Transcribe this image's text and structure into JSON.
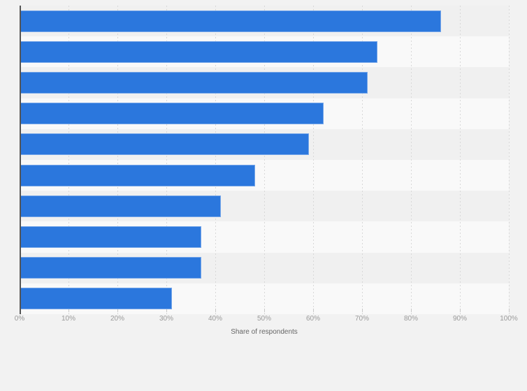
{
  "chart_data": {
    "type": "bar",
    "orientation": "horizontal",
    "title": "",
    "xlabel": "Share of respondents",
    "ylabel": "",
    "unit": "%",
    "xlim": [
      0,
      100
    ],
    "x_tick_step": 10,
    "x_tick_labels": [
      "0%",
      "10%",
      "20%",
      "30%",
      "40%",
      "50%",
      "60%",
      "70%",
      "80%",
      "90%",
      "100%"
    ],
    "values": [
      86,
      73,
      71,
      62,
      59,
      48,
      41,
      37,
      37,
      31
    ],
    "category_labels_visible": false,
    "legend": "none",
    "grid": "vertical dotted lines every 10%, alternating horizontal row bands"
  },
  "colors": {
    "background": "#f2f2f2",
    "band_odd": "#f0f0f0",
    "band_even": "#f9f9f9",
    "bar": "#2b77dd",
    "axis_line": "#555555",
    "grid_line": "#d8d8d8",
    "tick_label": "#999999",
    "axis_title": "#666666"
  }
}
